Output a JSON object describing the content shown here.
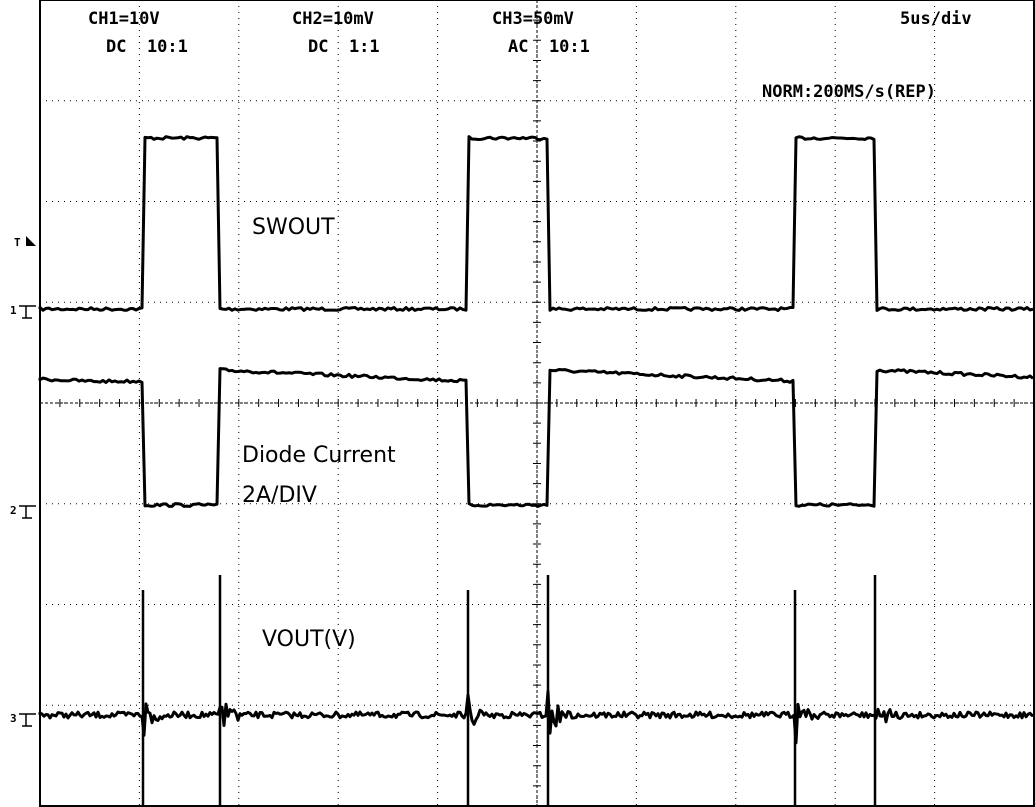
{
  "header": {
    "channels": [
      {
        "scale": "CH1=10V",
        "coupling": "DC  10:1"
      },
      {
        "scale": "CH2=10mV",
        "coupling": "DC  1:1"
      },
      {
        "scale": "CH3=50mV",
        "coupling": "AC  10:1"
      }
    ],
    "timebase": "5us/div",
    "mode": "NORM:200MS/s(REP)"
  },
  "annotations": [
    "SWOUT",
    "Diode Current",
    "2A/DIV",
    "VOUT(V)"
  ],
  "markers": [
    "T",
    "1",
    "2",
    "3"
  ]
}
